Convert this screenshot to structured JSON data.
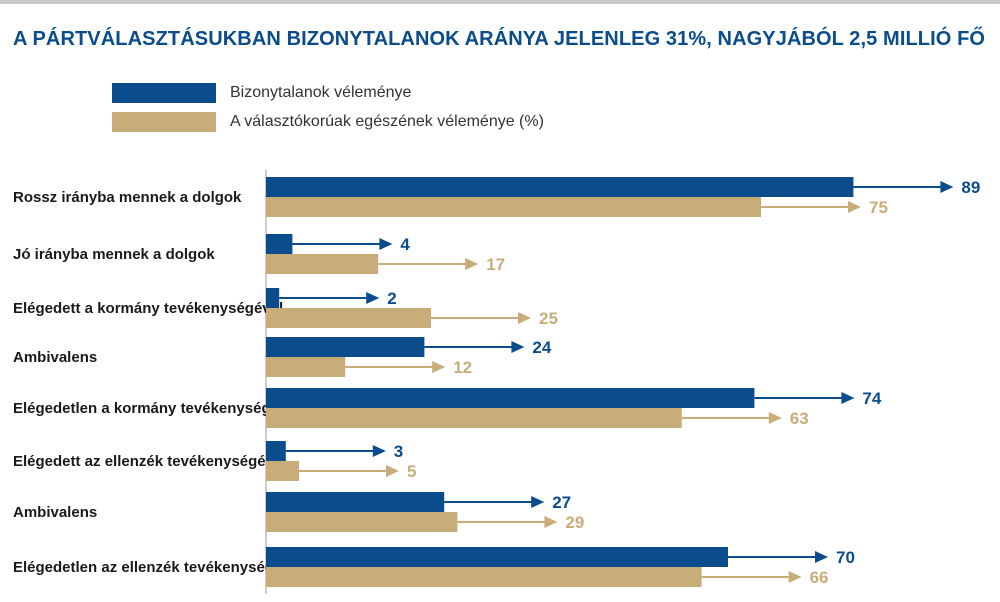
{
  "title": "A PÁRTVÁLASZTÁSUKBAN BIZONYTALANOK ARÁNYA JELENLEG 31%, NAGYJÁBÓL 2,5 MILLIÓ FŐ",
  "legend": [
    {
      "label": "Bizonytalanok véleménye",
      "color": "#0a4c8c"
    },
    {
      "label": "A választókorúak egészének véleménye (%)",
      "color": "#c8ad7a"
    }
  ],
  "chart_data": {
    "type": "bar",
    "orientation": "horizontal",
    "title": "A PÁRTVÁLASZTÁSUKBAN BIZONYTALANOK ARÁNYA JELENLEG 31%, NAGYJÁBÓL 2,5 MILLIÓ FŐ",
    "categories": [
      "Rossz irányba mennek a dolgok",
      "Jó irányba mennek a dolgok",
      "Elégedett a kormány tevékenységével",
      "Ambivalens",
      "Elégedetlen a kormány tevékenységével",
      "Elégedett az ellenzék tevékenységével",
      "Ambivalens",
      "Elégedetlen az ellenzék tevékenységével"
    ],
    "series": [
      {
        "name": "Bizonytalanok véleménye",
        "color": "#0a4c8c",
        "value_color": "#0a4c8c",
        "values": [
          89,
          4,
          2,
          24,
          74,
          3,
          27,
          70
        ]
      },
      {
        "name": "A választókorúak egészének véleménye (%)",
        "color": "#c8ad7a",
        "value_color": "#c8ad7a",
        "values": [
          75,
          17,
          25,
          12,
          63,
          5,
          29,
          66
        ]
      }
    ],
    "xlim": [
      0,
      100
    ],
    "legend_position": "top-left",
    "grid": false
  }
}
